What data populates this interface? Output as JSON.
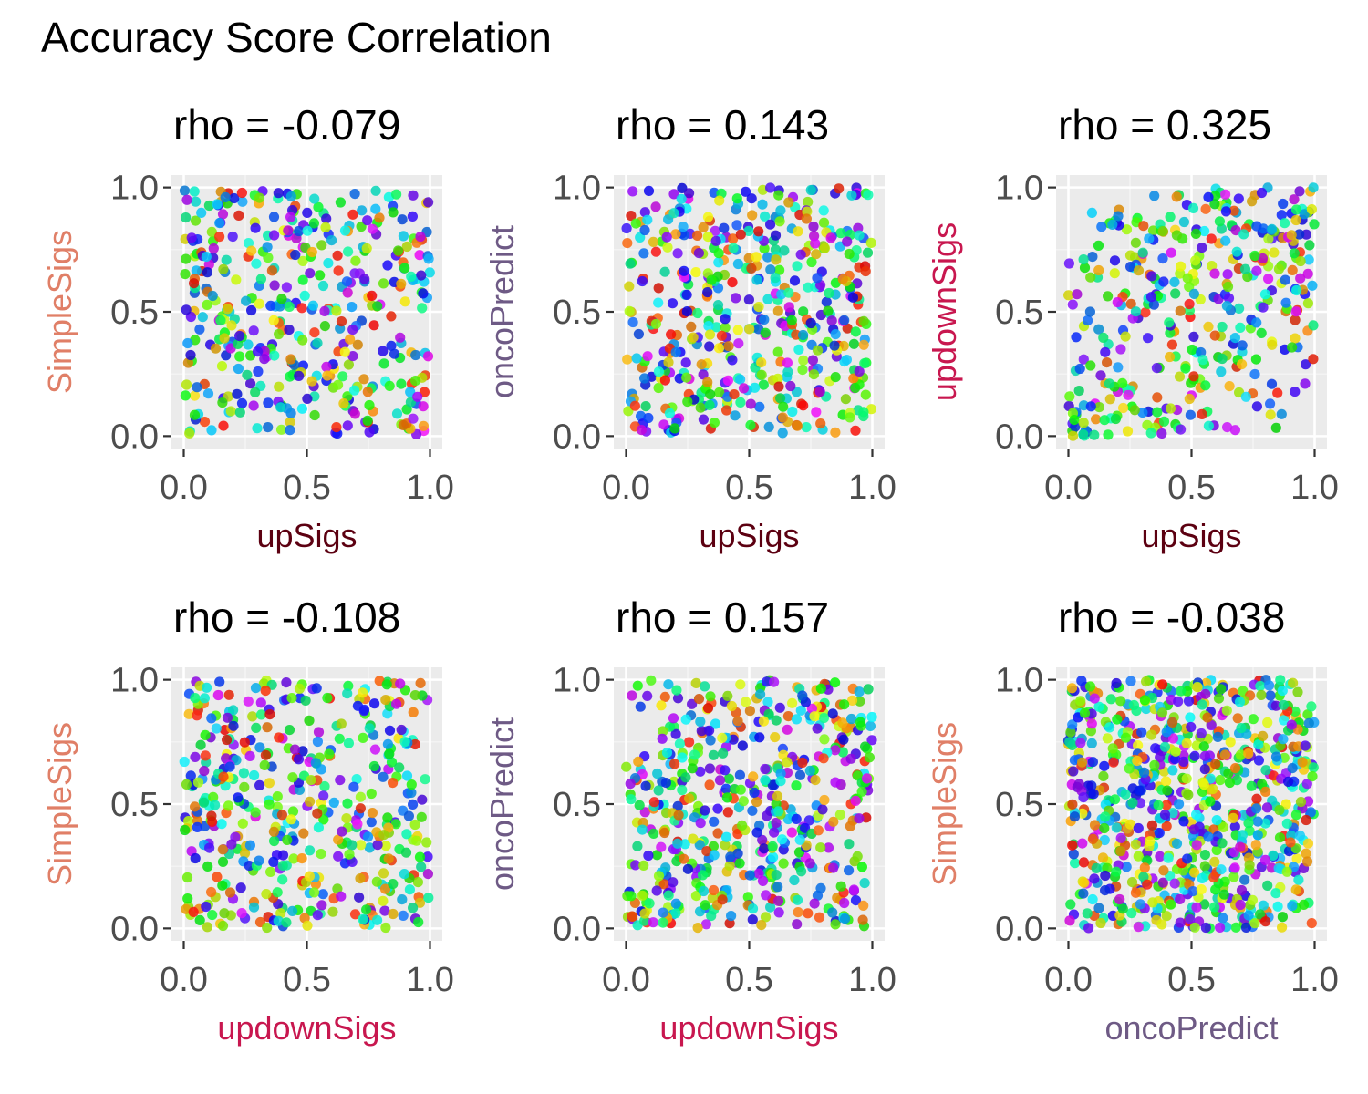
{
  "figure": {
    "title": "Accuracy Score Correlation"
  },
  "axis_colors": {
    "upSigs": "#5c0011",
    "updownSigs": "#c8174f",
    "oncoPredict": "#6e5a85",
    "SimpleSigs": "#e07f67"
  },
  "chart_data": [
    {
      "type": "scatter",
      "title": "rho = -0.079",
      "xlabel": "upSigs",
      "ylabel": "SimpleSigs",
      "rho": -0.079,
      "n_points": 420,
      "xlim": [
        0,
        1
      ],
      "ylim": [
        0,
        1
      ],
      "xticks": [
        "0.0",
        "0.5",
        "1.0"
      ],
      "yticks": [
        "0.0",
        "0.5",
        "1.0"
      ],
      "grid": true,
      "legend": "none"
    },
    {
      "type": "scatter",
      "title": "rho = 0.143",
      "xlabel": "upSigs",
      "ylabel": "oncoPredict",
      "rho": 0.143,
      "n_points": 480,
      "xlim": [
        0,
        1
      ],
      "ylim": [
        0,
        1
      ],
      "xticks": [
        "0.0",
        "0.5",
        "1.0"
      ],
      "yticks": [
        "0.0",
        "0.5",
        "1.0"
      ],
      "grid": true,
      "legend": "none"
    },
    {
      "type": "scatter",
      "title": "rho = 0.325",
      "xlabel": "upSigs",
      "ylabel": "updownSigs",
      "rho": 0.325,
      "n_points": 380,
      "xlim": [
        0,
        1
      ],
      "ylim": [
        0,
        1
      ],
      "xticks": [
        "0.0",
        "0.5",
        "1.0"
      ],
      "yticks": [
        "0.0",
        "0.5",
        "1.0"
      ],
      "grid": true,
      "legend": "none"
    },
    {
      "type": "scatter",
      "title": "rho = -0.108",
      "xlabel": "updownSigs",
      "ylabel": "SimpleSigs",
      "rho": -0.108,
      "n_points": 440,
      "xlim": [
        0,
        1
      ],
      "ylim": [
        0,
        1
      ],
      "xticks": [
        "0.0",
        "0.5",
        "1.0"
      ],
      "yticks": [
        "0.0",
        "0.5",
        "1.0"
      ],
      "grid": true,
      "legend": "none"
    },
    {
      "type": "scatter",
      "title": "rho = 0.157",
      "xlabel": "updownSigs",
      "ylabel": "oncoPredict",
      "rho": 0.157,
      "n_points": 520,
      "xlim": [
        0,
        1
      ],
      "ylim": [
        0,
        1
      ],
      "xticks": [
        "0.0",
        "0.5",
        "1.0"
      ],
      "yticks": [
        "0.0",
        "0.5",
        "1.0"
      ],
      "grid": true,
      "legend": "none"
    },
    {
      "type": "scatter",
      "title": "rho = -0.038",
      "xlabel": "oncoPredict",
      "ylabel": "SimpleSigs",
      "rho": -0.038,
      "n_points": 750,
      "xlim": [
        0,
        1
      ],
      "ylim": [
        0,
        1
      ],
      "xticks": [
        "0.0",
        "0.5",
        "1.0"
      ],
      "yticks": [
        "0.0",
        "0.5",
        "1.0"
      ],
      "grid": true,
      "legend": "none"
    }
  ]
}
